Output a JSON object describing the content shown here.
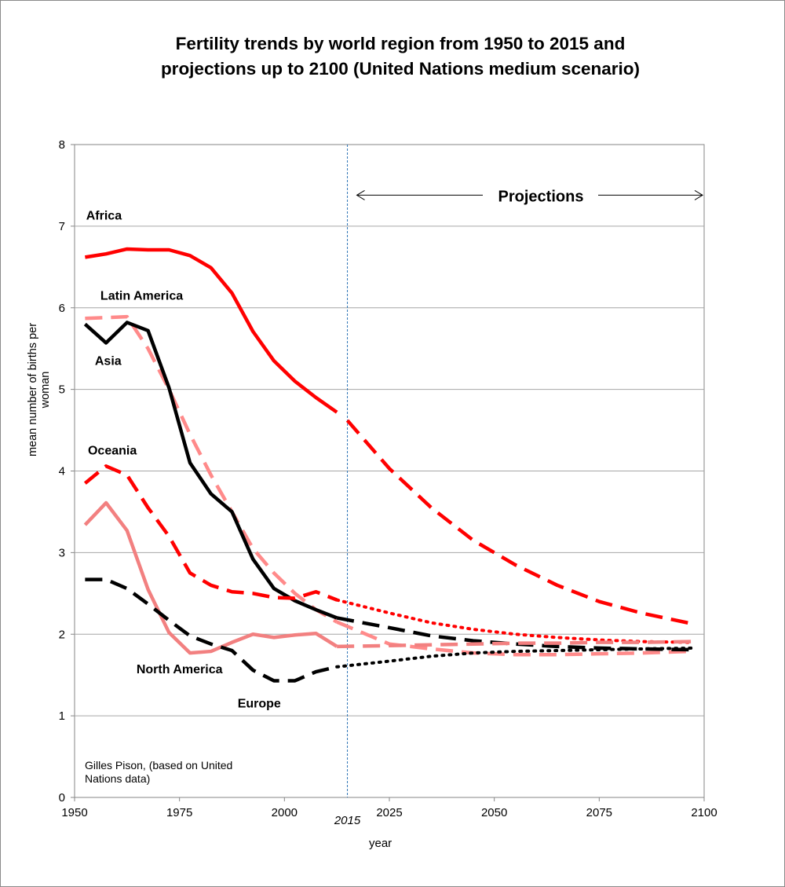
{
  "chart_data": {
    "type": "line",
    "title": [
      "Fertility trends by world region from 1950 to 2015 and",
      "projections up to 2100 (United Nations medium scenario)"
    ],
    "xlabel": "year",
    "ylabel": "mean number of births per woman",
    "xlim": [
      1950,
      2100
    ],
    "ylim": [
      0,
      8
    ],
    "x_ticks": [
      1950,
      1975,
      2000,
      2025,
      2050,
      2075,
      2100
    ],
    "y_ticks": [
      0,
      1,
      2,
      3,
      4,
      5,
      6,
      7,
      8
    ],
    "grid": "horizontal",
    "marker_year": 2015,
    "marker_label": "2015",
    "projection_label": "Projections",
    "source_note": [
      "Gilles Pison, (based on United",
      "Nations data)"
    ],
    "series": [
      {
        "name": "Africa",
        "color": "#ff0000",
        "label_at": [
          1957,
          7.08
        ],
        "x": [
          1952.5,
          1957.5,
          1962.5,
          1967.5,
          1972.5,
          1977.5,
          1982.5,
          1987.5,
          1992.5,
          1997.5,
          2002.5,
          2007.5,
          2012.5
        ],
        "values": [
          6.62,
          6.66,
          6.72,
          6.71,
          6.71,
          6.64,
          6.49,
          6.18,
          5.71,
          5.35,
          5.1,
          4.9,
          4.72
        ],
        "proj_x": [
          2015,
          2025,
          2035,
          2045,
          2055,
          2065,
          2075,
          2085,
          2097
        ],
        "proj_values": [
          4.62,
          4.03,
          3.55,
          3.15,
          2.85,
          2.6,
          2.4,
          2.26,
          2.13
        ],
        "style": "solid",
        "proj_style": "dashed"
      },
      {
        "name": "Latin America",
        "color": "#ff8a8a",
        "label_at": [
          1966,
          6.1
        ],
        "x": [
          1952.5,
          1957.5,
          1962.5,
          1967.5,
          1972.5,
          1977.5,
          1982.5,
          1987.5,
          1992.5,
          1997.5,
          2002.5,
          2007.5,
          2012.5
        ],
        "values": [
          5.87,
          5.88,
          5.89,
          5.5,
          5.0,
          4.45,
          3.95,
          3.5,
          3.05,
          2.75,
          2.5,
          2.3,
          2.15
        ],
        "proj_x": [
          2012.5,
          2025,
          2035,
          2045,
          2055,
          2065,
          2075,
          2085,
          2097
        ],
        "proj_values": [
          2.15,
          1.88,
          1.82,
          1.77,
          1.75,
          1.75,
          1.76,
          1.77,
          1.79
        ],
        "style": "dashed",
        "proj_style": "dashed"
      },
      {
        "name": "Asia",
        "color": "#000000",
        "label_at": [
          1958,
          5.3
        ],
        "x": [
          1952.5,
          1957.5,
          1962.5,
          1967.5,
          1972.5,
          1977.5,
          1982.5,
          1987.5,
          1992.5,
          1997.5,
          2002.5,
          2007.5,
          2012.5
        ],
        "values": [
          5.8,
          5.57,
          5.82,
          5.72,
          5.02,
          4.1,
          3.72,
          3.5,
          2.92,
          2.56,
          2.41,
          2.3,
          2.2
        ],
        "proj_x": [
          2012.5,
          2025,
          2035,
          2045,
          2055,
          2065,
          2075,
          2085,
          2097
        ],
        "proj_values": [
          2.2,
          2.08,
          1.98,
          1.92,
          1.88,
          1.85,
          1.83,
          1.82,
          1.81
        ],
        "style": "solid",
        "proj_style": "dashed"
      },
      {
        "name": "Oceania",
        "color": "#ff0000",
        "label_at": [
          1959,
          4.2
        ],
        "x": [
          1952.5,
          1957.5,
          1962.5,
          1967.5,
          1972.5,
          1977.5,
          1982.5,
          1987.5,
          1992.5,
          1997.5,
          2002.5,
          2007.5,
          2012.5
        ],
        "values": [
          3.85,
          4.06,
          3.95,
          3.55,
          3.2,
          2.75,
          2.6,
          2.52,
          2.5,
          2.45,
          2.44,
          2.52,
          2.42
        ],
        "proj_x": [
          2012.5,
          2025,
          2035,
          2045,
          2055,
          2065,
          2075,
          2085,
          2097
        ],
        "proj_values": [
          2.42,
          2.26,
          2.14,
          2.06,
          2.0,
          1.96,
          1.93,
          1.91,
          1.9
        ],
        "style": "dashed",
        "proj_style": "dotted"
      },
      {
        "name": "North America",
        "color": "#f28080",
        "label_at": [
          1975,
          1.52
        ],
        "x": [
          1952.5,
          1957.5,
          1962.5,
          1967.5,
          1972.5,
          1977.5,
          1982.5,
          1987.5,
          1992.5,
          1997.5,
          2002.5,
          2007.5,
          2012.5
        ],
        "values": [
          3.34,
          3.61,
          3.27,
          2.55,
          2.02,
          1.77,
          1.79,
          1.9,
          2.0,
          1.96,
          1.99,
          2.01,
          1.85
        ],
        "proj_x": [
          2012.5,
          2025,
          2035,
          2045,
          2055,
          2065,
          2075,
          2085,
          2097
        ],
        "proj_values": [
          1.85,
          1.86,
          1.87,
          1.88,
          1.89,
          1.89,
          1.9,
          1.9,
          1.91
        ],
        "style": "solid",
        "proj_style": "dashed"
      },
      {
        "name": "Europe",
        "color": "#000000",
        "label_at": [
          1994,
          1.1
        ],
        "x": [
          1952.5,
          1957.5,
          1962.5,
          1967.5,
          1972.5,
          1977.5,
          1982.5,
          1987.5,
          1992.5,
          1997.5,
          2002.5,
          2007.5,
          2012.5
        ],
        "values": [
          2.67,
          2.67,
          2.56,
          2.37,
          2.17,
          1.98,
          1.88,
          1.8,
          1.56,
          1.43,
          1.43,
          1.54,
          1.6
        ],
        "proj_x": [
          2012.5,
          2025,
          2035,
          2045,
          2055,
          2065,
          2075,
          2085,
          2097
        ],
        "proj_values": [
          1.6,
          1.67,
          1.73,
          1.77,
          1.79,
          1.8,
          1.81,
          1.82,
          1.83
        ],
        "style": "dashed",
        "proj_style": "dotted"
      }
    ]
  }
}
